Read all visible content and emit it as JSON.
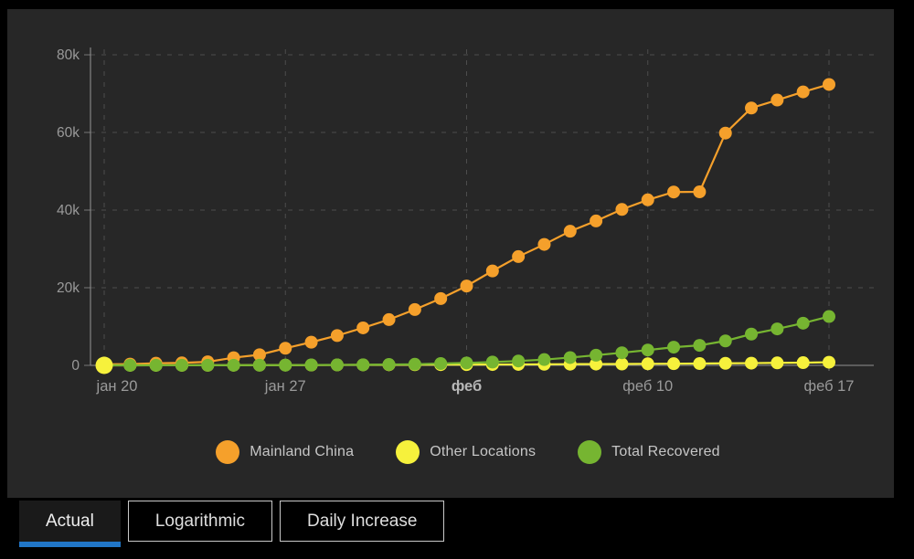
{
  "chart_data": {
    "type": "line",
    "title": "",
    "xlabel": "",
    "ylabel": "",
    "n_points": 29,
    "x_tick_labels": [
      {
        "index": 0,
        "label": "јан 20",
        "bold": false
      },
      {
        "index": 7,
        "label": "јан 27",
        "bold": false
      },
      {
        "index": 14,
        "label": "феб",
        "bold": true
      },
      {
        "index": 21,
        "label": "феб 10",
        "bold": false
      },
      {
        "index": 28,
        "label": "феб 17",
        "bold": false
      }
    ],
    "y_axis": {
      "min": 0,
      "max": 80000,
      "tick_interval": 20000,
      "tick_labels": [
        "0",
        "20k",
        "40k",
        "60k",
        "80k"
      ]
    },
    "grid": true,
    "legend_position": "bottom",
    "series": [
      {
        "name": "Mainland China",
        "color": "#F5A02B",
        "values": [
          278,
          326,
          547,
          639,
          916,
          1979,
          2737,
          4409,
          5970,
          7678,
          9658,
          11791,
          14380,
          17205,
          20440,
          24324,
          28018,
          31161,
          34546,
          37198,
          40171,
          42638,
          44653,
          44699,
          59832,
          66292,
          68347,
          70446,
          72364
        ]
      },
      {
        "name": "Other Locations",
        "color": "#F6F13C",
        "values": [
          4,
          6,
          9,
          13,
          25,
          39,
          56,
          64,
          87,
          103,
          125,
          153,
          173,
          186,
          197,
          215,
          244,
          280,
          306,
          331,
          351,
          400,
          427,
          465,
          527,
          570,
          640,
          696,
          804
        ]
      },
      {
        "name": "Total Recovered",
        "color": "#76B531",
        "values": [
          28,
          30,
          28,
          30,
          36,
          39,
          52,
          61,
          107,
          126,
          143,
          222,
          284,
          472,
          623,
          852,
          1124,
          1487,
          2011,
          2616,
          3244,
          3946,
          4683,
          5150,
          6295,
          8058,
          9395,
          10865,
          12583
        ]
      }
    ],
    "highlight_point": {
      "series_index": 1,
      "point_index": 0
    }
  },
  "legend": {
    "items": [
      {
        "label": "Mainland China",
        "color": "#F5A02B"
      },
      {
        "label": "Other Locations",
        "color": "#F6F13C"
      },
      {
        "label": "Total Recovered",
        "color": "#76B531"
      }
    ]
  },
  "tabs": {
    "active_underline_color": "#2176C7",
    "items": [
      {
        "label": "Actual",
        "active": true
      },
      {
        "label": "Logarithmic",
        "active": false
      },
      {
        "label": "Daily Increase",
        "active": false
      }
    ]
  },
  "colors": {
    "page_background": "#000000",
    "panel_background": "#272727",
    "gridline": "#4d4d4d",
    "axis_line": "#8c8c8c",
    "axis_text": "#9a9a9a",
    "axis_text_bold": "#b8b8b8",
    "legend_text": "#c6c6c6"
  }
}
